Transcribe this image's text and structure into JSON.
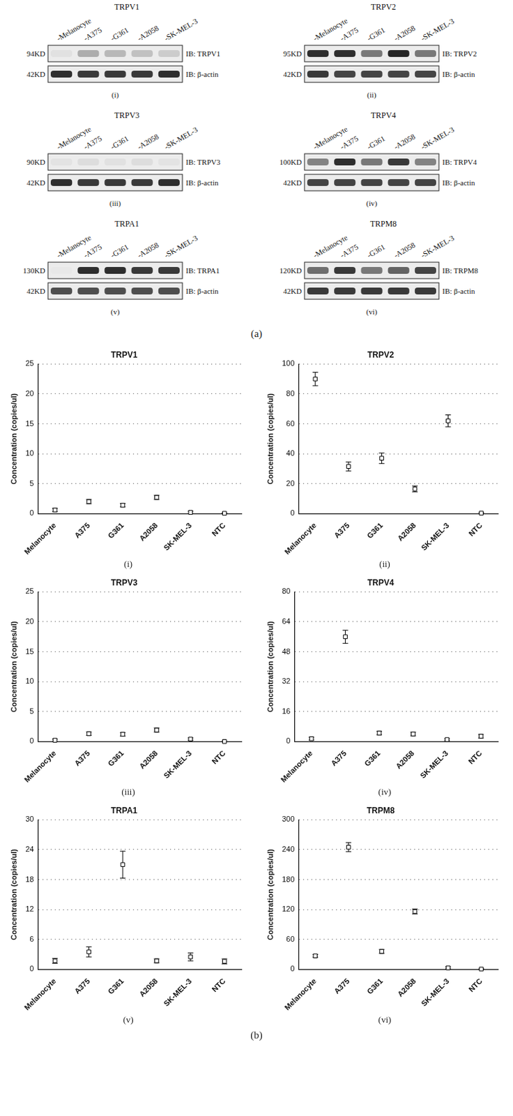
{
  "panel_a": {
    "label": "(a)",
    "blots": [
      {
        "title": "TRPV1",
        "panel": "(i)",
        "lanes": [
          "-Melanocyte",
          "-A375",
          "-G361",
          "-A2058",
          "-SK-MEL-3"
        ],
        "bands": [
          {
            "mw": "94KD",
            "antibody": "IB: TRPV1",
            "band_intensity": [
              0.05,
              0.3,
              0.25,
              0.2,
              0.15
            ]
          },
          {
            "mw": "42KD",
            "antibody": "IB: β-actin",
            "band_intensity": [
              0.9,
              0.85,
              0.85,
              0.85,
              0.9
            ]
          }
        ]
      },
      {
        "title": "TRPV2",
        "panel": "(ii)",
        "lanes": [
          "-Melanocyte",
          "-A375",
          "-G361",
          "-A2058",
          "-SK-MEL-3"
        ],
        "bands": [
          {
            "mw": "95KD",
            "antibody": "IB: TRPV2",
            "band_intensity": [
              0.9,
              0.9,
              0.55,
              0.95,
              0.55
            ]
          },
          {
            "mw": "42KD",
            "antibody": "IB: β-actin",
            "band_intensity": [
              0.85,
              0.8,
              0.8,
              0.8,
              0.8
            ]
          }
        ]
      },
      {
        "title": "TRPV3",
        "panel": "(iii)",
        "lanes": [
          "-Melanocyte",
          "-A375",
          "-G361",
          "-A2058",
          "-SK-MEL-3"
        ],
        "bands": [
          {
            "mw": "90KD",
            "antibody": "IB: TRPV3",
            "band_intensity": [
              0.04,
              0.07,
              0.05,
              0.07,
              0.04
            ]
          },
          {
            "mw": "42KD",
            "antibody": "IB: β-actin",
            "band_intensity": [
              0.9,
              0.85,
              0.85,
              0.85,
              0.9
            ]
          }
        ]
      },
      {
        "title": "TRPV4",
        "panel": "(iv)",
        "lanes": [
          "-Melanocyte",
          "-A375",
          "-G361",
          "-A2058",
          "-SK-MEL-3"
        ],
        "bands": [
          {
            "mw": "100KD",
            "antibody": "IB: TRPV4",
            "band_intensity": [
              0.5,
              0.9,
              0.55,
              0.85,
              0.5
            ]
          },
          {
            "mw": "42KD",
            "antibody": "IB: β-actin",
            "band_intensity": [
              0.8,
              0.8,
              0.8,
              0.8,
              0.8
            ]
          }
        ]
      },
      {
        "title": "TRPA1",
        "panel": "(v)",
        "lanes": [
          "-Melanocyte",
          "-A375",
          "-G361",
          "-A2058",
          "-SK-MEL-3"
        ],
        "bands": [
          {
            "mw": "130KD",
            "antibody": "IB: TRPA1",
            "band_intensity": [
              0.02,
              0.9,
              0.9,
              0.85,
              0.85
            ]
          },
          {
            "mw": "42KD",
            "antibody": "IB: β-actin",
            "band_intensity": [
              0.75,
              0.75,
              0.75,
              0.75,
              0.75
            ]
          }
        ]
      },
      {
        "title": "TRPM8",
        "panel": "(vi)",
        "lanes": [
          "-Melanocyte",
          "-A375",
          "-G361",
          "-A2058",
          "-SK-MEL-3"
        ],
        "bands": [
          {
            "mw": "120KD",
            "antibody": "IB: TRPM8",
            "band_intensity": [
              0.6,
              0.85,
              0.55,
              0.65,
              0.8
            ]
          },
          {
            "mw": "42KD",
            "antibody": "IB: β-actin",
            "band_intensity": [
              0.85,
              0.85,
              0.85,
              0.85,
              0.85
            ]
          }
        ]
      }
    ]
  },
  "panel_b_label": "(b)",
  "chart_data": [
    {
      "type": "scatter",
      "title": "TRPV1",
      "panel": "(i)",
      "y_label": "Concentration (copies/ul)",
      "categories": [
        "Melanocyte",
        "A375",
        "G361",
        "A2058",
        "SK-MEL-3",
        "NTC"
      ],
      "values": [
        0.6,
        2.0,
        1.4,
        2.7,
        0.2,
        0.05
      ],
      "errors": [
        0.3,
        0.35,
        0.3,
        0.35,
        0.2,
        0.05
      ],
      "ylim": [
        0,
        25
      ],
      "yticks": [
        0,
        5,
        10,
        15,
        20,
        25
      ],
      "grid": true,
      "marker": "square",
      "color": "#000000"
    },
    {
      "type": "scatter",
      "title": "TRPV2",
      "panel": "(ii)",
      "y_label": "Concentration (copies/ul)",
      "categories": [
        "Melanocyte",
        "A375",
        "G361",
        "A2058",
        "SK-MEL-3",
        "NTC"
      ],
      "values": [
        90,
        31.5,
        37,
        16.5,
        62,
        0.3
      ],
      "errors": [
        4.5,
        3,
        3.5,
        2,
        4,
        0.3
      ],
      "ylim": [
        0,
        100
      ],
      "yticks": [
        0,
        20,
        40,
        60,
        80,
        100
      ],
      "grid": true,
      "marker": "square",
      "color": "#000000"
    },
    {
      "type": "scatter",
      "title": "TRPV3",
      "panel": "(iii)",
      "y_label": "Concentration (copies/ul)",
      "categories": [
        "Melanocyte",
        "A375",
        "G361",
        "A2058",
        "SK-MEL-3",
        "NTC"
      ],
      "values": [
        0.2,
        1.3,
        1.2,
        1.9,
        0.4,
        0
      ],
      "errors": [
        0.2,
        0.3,
        0.3,
        0.35,
        0.2,
        0
      ],
      "ylim": [
        0,
        25
      ],
      "yticks": [
        0,
        5,
        10,
        15,
        20,
        25
      ],
      "grid": true,
      "marker": "square",
      "color": "#000000"
    },
    {
      "type": "scatter",
      "title": "TRPV4",
      "panel": "(iv)",
      "y_label": "Concentration (copies/ul)",
      "categories": [
        "Melanocyte",
        "A375",
        "G361",
        "A2058",
        "SK-MEL-3",
        "NTC"
      ],
      "values": [
        1.5,
        56,
        4.5,
        4,
        1,
        2.8
      ],
      "errors": [
        0.8,
        3.5,
        1,
        1,
        0.5,
        1
      ],
      "ylim": [
        0,
        80
      ],
      "yticks": [
        0,
        16,
        32,
        48,
        64,
        80
      ],
      "grid": true,
      "marker": "square",
      "color": "#000000"
    },
    {
      "type": "scatter",
      "title": "TRPA1",
      "panel": "(v)",
      "y_label": "Concentration (copies/ul)",
      "categories": [
        "Melanocyte",
        "A375",
        "G361",
        "A2058",
        "SK-MEL-3",
        "NTC"
      ],
      "values": [
        1.7,
        3.5,
        21,
        1.7,
        2.5,
        1.6
      ],
      "errors": [
        0.5,
        1,
        2.7,
        0.4,
        0.8,
        0.5
      ],
      "ylim": [
        0,
        30
      ],
      "yticks": [
        0,
        6,
        12,
        18,
        24,
        30
      ],
      "grid": true,
      "marker": "square",
      "color": "#000000"
    },
    {
      "type": "scatter",
      "title": "TRPM8",
      "panel": "(vi)",
      "y_label": "Concentration (copies/ul)",
      "categories": [
        "Melanocyte",
        "A375",
        "G361",
        "A2058",
        "SK-MEL-3",
        "NTC"
      ],
      "values": [
        27,
        245,
        36,
        116,
        3,
        0.5
      ],
      "errors": [
        3,
        9,
        4,
        5,
        2,
        0.5
      ],
      "ylim": [
        0,
        300
      ],
      "yticks": [
        0,
        60,
        120,
        180,
        240,
        300
      ],
      "grid": true,
      "marker": "square",
      "color": "#000000"
    }
  ]
}
